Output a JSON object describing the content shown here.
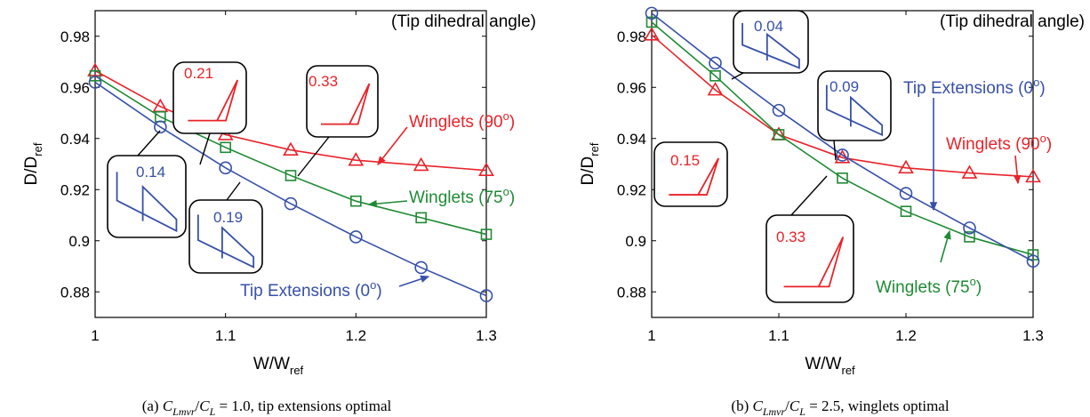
{
  "chart_data": [
    {
      "type": "line",
      "xlabel": "W/W",
      "xlabel_sub": "ref",
      "ylabel": "D/D",
      "ylabel_sub": "ref",
      "xlim": [
        1,
        1.3
      ],
      "ylim": [
        0.87,
        0.99
      ],
      "xticks": [
        "1",
        "1.1",
        "1.2",
        "1.3"
      ],
      "yticks": [
        "0.88",
        "0.9",
        "0.92",
        "0.94",
        "0.96",
        "0.98"
      ],
      "corner_note": "(Tip dihedral angle)",
      "series": [
        {
          "name": "Winglets (90",
          "name_sup": "o",
          "name_end": ")",
          "color": "#e8232a",
          "marker": "triangle",
          "x": [
            1,
            1.05,
            1.1,
            1.15,
            1.2,
            1.25,
            1.3
          ],
          "values": [
            0.9665,
            0.9525,
            0.9415,
            0.9355,
            0.9315,
            0.9295,
            0.9275
          ]
        },
        {
          "name": "Winglets (75",
          "name_sup": "o",
          "name_end": ")",
          "color": "#1f8a34",
          "marker": "square",
          "x": [
            1,
            1.05,
            1.1,
            1.15,
            1.2,
            1.25,
            1.3
          ],
          "values": [
            0.9645,
            0.9485,
            0.9365,
            0.9255,
            0.9155,
            0.909,
            0.9025
          ]
        },
        {
          "name": "Tip Extensions (0",
          "name_sup": "o",
          "name_end": ")",
          "color": "#3750a8",
          "marker": "circle",
          "x": [
            1,
            1.05,
            1.1,
            1.15,
            1.2,
            1.25,
            1.3
          ],
          "values": [
            0.962,
            0.9445,
            0.9285,
            0.9145,
            0.9015,
            0.8895,
            0.8785
          ]
        }
      ],
      "insets": [
        {
          "value": "0.21",
          "color": "#e8232a",
          "shape": "winglet"
        },
        {
          "value": "0.33",
          "color": "#e8232a",
          "shape": "winglet"
        },
        {
          "value": "0.14",
          "color": "#3750a8",
          "shape": "extension"
        },
        {
          "value": "0.19",
          "color": "#3750a8",
          "shape": "extension"
        }
      ],
      "caption": {
        "prefix": "(a) ",
        "math_c": "C",
        "math_sub": "Lmvr",
        "math_div": "/",
        "math_sub2": "L",
        "rest": " = 1.0, tip extensions optimal"
      }
    },
    {
      "type": "line",
      "xlabel": "W/W",
      "xlabel_sub": "ref",
      "ylabel": "D/D",
      "ylabel_sub": "ref",
      "xlim": [
        1,
        1.3
      ],
      "ylim": [
        0.87,
        0.99
      ],
      "xticks": [
        "1",
        "1.1",
        "1.2",
        "1.3"
      ],
      "yticks": [
        "0.88",
        "0.9",
        "0.92",
        "0.94",
        "0.96",
        "0.98"
      ],
      "corner_note": "(Tip dihedral angle)",
      "series": [
        {
          "name": "Winglets (90",
          "name_sup": "o",
          "name_end": ")",
          "color": "#e8232a",
          "marker": "triangle",
          "x": [
            1,
            1.05,
            1.1,
            1.15,
            1.2,
            1.25,
            1.3
          ],
          "values": [
            0.9805,
            0.959,
            0.9415,
            0.9325,
            0.9285,
            0.9265,
            0.925
          ]
        },
        {
          "name": "Winglets (75",
          "name_sup": "o",
          "name_end": ")",
          "color": "#1f8a34",
          "marker": "square",
          "x": [
            1,
            1.05,
            1.1,
            1.15,
            1.2,
            1.25,
            1.3
          ],
          "values": [
            0.9855,
            0.9645,
            0.9415,
            0.9245,
            0.9115,
            0.9015,
            0.8945
          ]
        },
        {
          "name": "Tip Extensions (0",
          "name_sup": "o",
          "name_end": ")",
          "color": "#3750a8",
          "marker": "circle",
          "x": [
            1,
            1.05,
            1.1,
            1.15,
            1.2,
            1.25,
            1.3
          ],
          "values": [
            0.989,
            0.9695,
            0.951,
            0.9335,
            0.9185,
            0.905,
            0.892
          ]
        }
      ],
      "insets": [
        {
          "value": "0.04",
          "color": "#3750a8",
          "shape": "extension"
        },
        {
          "value": "0.09",
          "color": "#3750a8",
          "shape": "extension"
        },
        {
          "value": "0.15",
          "color": "#e8232a",
          "shape": "winglet"
        },
        {
          "value": "0.33",
          "color": "#e8232a",
          "shape": "winglet"
        }
      ],
      "caption": {
        "prefix": "(b) ",
        "math_c": "C",
        "math_sub": "Lmvr",
        "math_div": "/",
        "math_sub2": "L",
        "rest": " = 2.5, winglets optimal"
      }
    }
  ]
}
